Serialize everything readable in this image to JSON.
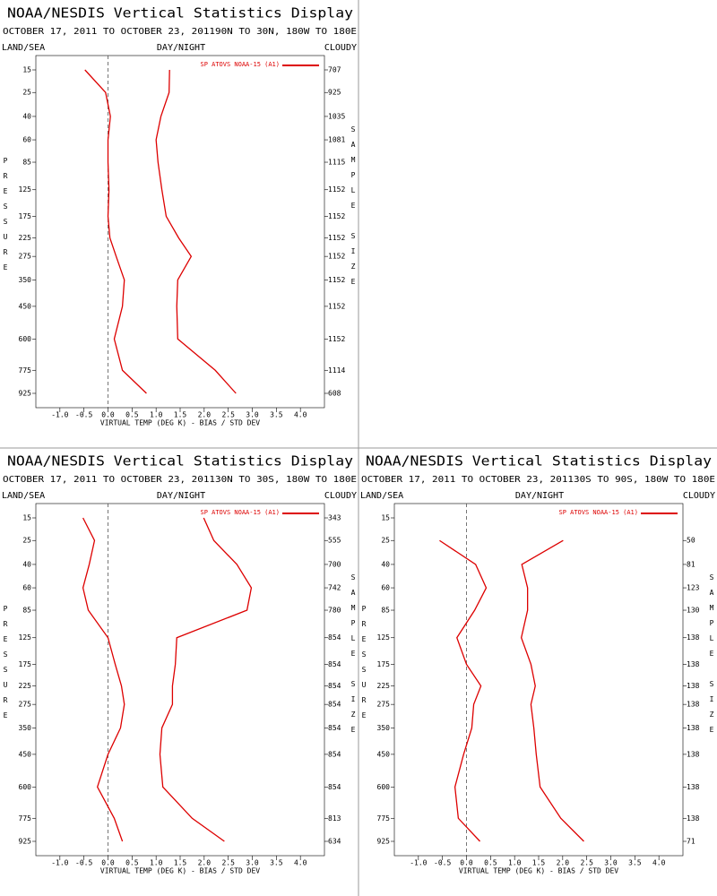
{
  "chart_data": [
    {
      "type": "line",
      "title": "NOAA/NESDIS Vertical Statistics Display",
      "subtitle": "OCTOBER 17, 2011 TO OCTOBER 23, 201190N TO 30N, 180W TO 180E",
      "left_label": "LAND/SEA",
      "center_label": "DAY/NIGHT",
      "right_label": "CLOUDY",
      "y_label": "PRESSURE",
      "y2_label": "SAMPLE SIZE",
      "x_label": "VIRTUAL TEMP (DEG K) - BIAS / STD DEV",
      "levels": [
        15,
        25,
        40,
        60,
        85,
        125,
        175,
        225,
        275,
        350,
        450,
        600,
        775,
        925
      ],
      "sample_size": [
        707,
        925,
        1035,
        1081,
        1115,
        1152,
        1152,
        1152,
        1152,
        1152,
        1152,
        1152,
        1114,
        608
      ],
      "series": [
        {
          "name": "SP ATOVS NOAA-15 (A1)",
          "color": "#dd0000",
          "bias": [
            -0.48,
            -0.05,
            0.05,
            0.0,
            0.0,
            0.02,
            0.0,
            0.04,
            0.17,
            0.34,
            0.3,
            0.13,
            0.3,
            0.8
          ],
          "std_dev": [
            1.28,
            1.27,
            1.1,
            1.0,
            1.04,
            1.12,
            1.21,
            1.47,
            1.73,
            1.45,
            1.43,
            1.45,
            2.23,
            2.66
          ]
        }
      ],
      "xlim": [
        -1.5,
        4.5
      ],
      "xticks": [
        {
          "value": -1,
          "label": "-1.0"
        },
        -0.5,
        {
          "value": 0,
          "label": "0.0"
        },
        0.5,
        {
          "value": 1,
          "label": "1.0"
        },
        1.5,
        {
          "value": 2,
          "label": "2.0"
        },
        2.5,
        {
          "value": 3,
          "label": "3.0"
        },
        3.5,
        {
          "value": 4,
          "label": "4.0"
        }
      ]
    },
    {
      "type": "line",
      "title": "NOAA/NESDIS Vertical Statistics Display",
      "subtitle": "OCTOBER 17, 2011 TO OCTOBER 23, 201130N TO 30S, 180W TO 180E",
      "left_label": "LAND/SEA",
      "center_label": "DAY/NIGHT",
      "right_label": "CLOUDY",
      "y_label": "PRESSURE",
      "y2_label": "SAMPLE SIZE",
      "x_label": "VIRTUAL TEMP (DEG K) - BIAS / STD DEV",
      "levels": [
        15,
        25,
        40,
        60,
        85,
        125,
        175,
        225,
        275,
        350,
        450,
        600,
        775,
        925
      ],
      "sample_size": [
        343,
        555,
        700,
        742,
        780,
        854,
        854,
        854,
        854,
        854,
        854,
        854,
        813,
        634
      ],
      "series": [
        {
          "name": "SP ATOVS NOAA-15 (A1)",
          "color": "#dd0000",
          "bias": [
            -0.52,
            -0.28,
            -0.39,
            -0.52,
            -0.41,
            0.0,
            0.15,
            0.28,
            0.34,
            0.26,
            0.0,
            -0.22,
            0.13,
            0.3
          ],
          "std_dev": [
            1.99,
            2.2,
            2.68,
            2.98,
            2.89,
            1.43,
            1.4,
            1.34,
            1.34,
            1.12,
            1.08,
            1.14,
            1.75,
            2.42
          ]
        }
      ],
      "xlim": [
        -1.5,
        4.5
      ],
      "xticks": [
        {
          "value": -1,
          "label": "-1.0"
        },
        -0.5,
        {
          "value": 0,
          "label": "0.0"
        },
        0.5,
        {
          "value": 1,
          "label": "1.0"
        },
        1.5,
        {
          "value": 2,
          "label": "2.0"
        },
        2.5,
        {
          "value": 3,
          "label": "3.0"
        },
        3.5,
        {
          "value": 4,
          "label": "4.0"
        }
      ]
    },
    {
      "type": "line",
      "title": "NOAA/NESDIS Vertical Statistics Display",
      "subtitle": "OCTOBER 17, 2011 TO OCTOBER 23, 201130S TO 90S, 180W TO 180E",
      "left_label": "LAND/SEA",
      "center_label": "DAY/NIGHT",
      "right_label": "CLOUDY",
      "y_label": "PRESSURE",
      "y2_label": "SAMPLE SIZE",
      "x_label": "VIRTUAL TEMP (DEG K) - BIAS / STD DEV",
      "levels": [
        15,
        25,
        40,
        60,
        85,
        125,
        175,
        225,
        275,
        350,
        450,
        600,
        775,
        925
      ],
      "sample_size": [
        null,
        50,
        81,
        123,
        130,
        138,
        138,
        138,
        138,
        138,
        138,
        138,
        138,
        71
      ],
      "series": [
        {
          "name": "SP ATOVS NOAA-15 (A1)",
          "color": "#dd0000",
          "bias": [
            null,
            -0.56,
            0.19,
            0.41,
            0.17,
            -0.2,
            0.0,
            0.3,
            0.15,
            0.11,
            -0.06,
            -0.24,
            -0.17,
            0.28
          ],
          "std_dev": [
            null,
            2.01,
            1.15,
            1.27,
            1.27,
            1.14,
            1.34,
            1.43,
            1.34,
            1.4,
            1.45,
            1.53,
            1.96,
            2.44
          ]
        }
      ],
      "xlim": [
        -1.5,
        4.5
      ],
      "xticks": [
        {
          "value": -1,
          "label": "-1.0"
        },
        -0.5,
        {
          "value": 0,
          "label": "0.0"
        },
        0.5,
        {
          "value": 1,
          "label": "1.0"
        },
        1.5,
        {
          "value": 2,
          "label": "2.0"
        },
        2.5,
        {
          "value": 3,
          "label": "3.0"
        },
        3.5,
        {
          "value": 4,
          "label": "4.0"
        }
      ]
    }
  ]
}
